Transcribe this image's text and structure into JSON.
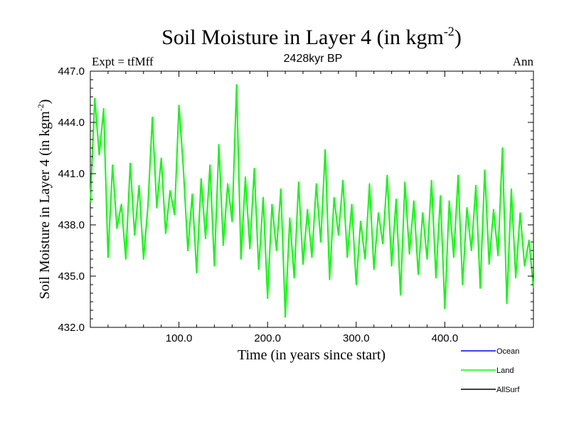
{
  "chart_data": {
    "type": "line",
    "title": "Soil Moisture in Layer 4 (in kgm",
    "title_superscript": "-2",
    "title_close": ")",
    "subtitle": "2428kyr BP",
    "left_label": "Expt = tfMff",
    "right_label": "Ann",
    "xlabel": "Time (in years since start)",
    "ylabel": "Soil Moisture in Layer 4 (in kgm",
    "ylabel_superscript": "-2",
    "ylabel_close": ")",
    "xlim": [
      0,
      500
    ],
    "ylim": [
      432.0,
      447.0
    ],
    "xticks": [
      100,
      200,
      300,
      400
    ],
    "xtick_labels": [
      "100.0",
      "200.0",
      "300.0",
      "400.0"
    ],
    "yticks": [
      432,
      435,
      438,
      441,
      444,
      447
    ],
    "ytick_labels": [
      "432.0",
      "435.0",
      "438.0",
      "441.0",
      "444.0",
      "447.0"
    ],
    "legend": [
      {
        "name": "Ocean",
        "color": "#0000ff"
      },
      {
        "name": "Land",
        "color": "#00ff00"
      },
      {
        "name": "AllSurf",
        "color": "#000000"
      }
    ],
    "series": [
      {
        "name": "Land",
        "color": "#00ff00",
        "x": [
          0,
          5,
          10,
          15,
          20,
          25,
          30,
          35,
          40,
          45,
          50,
          55,
          60,
          65,
          70,
          75,
          80,
          85,
          90,
          95,
          100,
          105,
          110,
          115,
          120,
          125,
          130,
          135,
          140,
          145,
          150,
          155,
          160,
          165,
          170,
          175,
          180,
          185,
          190,
          195,
          200,
          205,
          210,
          215,
          220,
          225,
          230,
          235,
          240,
          245,
          250,
          255,
          260,
          265,
          270,
          275,
          280,
          285,
          290,
          295,
          300,
          305,
          310,
          315,
          320,
          325,
          330,
          335,
          340,
          345,
          350,
          355,
          360,
          365,
          370,
          375,
          380,
          385,
          390,
          395,
          400,
          405,
          410,
          415,
          420,
          425,
          430,
          435,
          440,
          445,
          450,
          455,
          460,
          465,
          470,
          475,
          480,
          485,
          490,
          495,
          500
        ],
        "values": [
          439.3,
          445.4,
          442.1,
          444.8,
          436.1,
          441.5,
          437.8,
          439.2,
          436.0,
          441.6,
          437.4,
          440.3,
          436.0,
          439.1,
          444.3,
          439.0,
          441.9,
          437.5,
          440.0,
          438.6,
          445.0,
          441.3,
          436.5,
          439.8,
          435.2,
          440.7,
          437.2,
          441.5,
          435.6,
          442.7,
          436.8,
          440.4,
          438.2,
          446.2,
          436.0,
          440.8,
          436.6,
          441.3,
          435.4,
          439.6,
          433.7,
          439.2,
          436.5,
          440.1,
          432.6,
          438.4,
          434.9,
          440.5,
          435.7,
          438.9,
          436.1,
          440.4,
          437.0,
          442.4,
          434.8,
          439.6,
          437.4,
          440.6,
          436.1,
          439.2,
          434.5,
          438.2,
          436.0,
          440.4,
          435.4,
          438.7,
          436.9,
          440.9,
          435.6,
          439.5,
          433.9,
          440.5,
          436.3,
          439.4,
          435.1,
          438.7,
          436.0,
          440.6,
          434.9,
          439.7,
          433.1,
          439.4,
          436.1,
          440.9,
          434.5,
          439.0,
          436.5,
          440.3,
          434.3,
          441.2,
          435.7,
          438.9,
          436.2,
          442.5,
          433.4,
          440.1,
          434.9,
          438.7,
          435.6,
          437.1,
          434.3
        ]
      }
    ]
  }
}
